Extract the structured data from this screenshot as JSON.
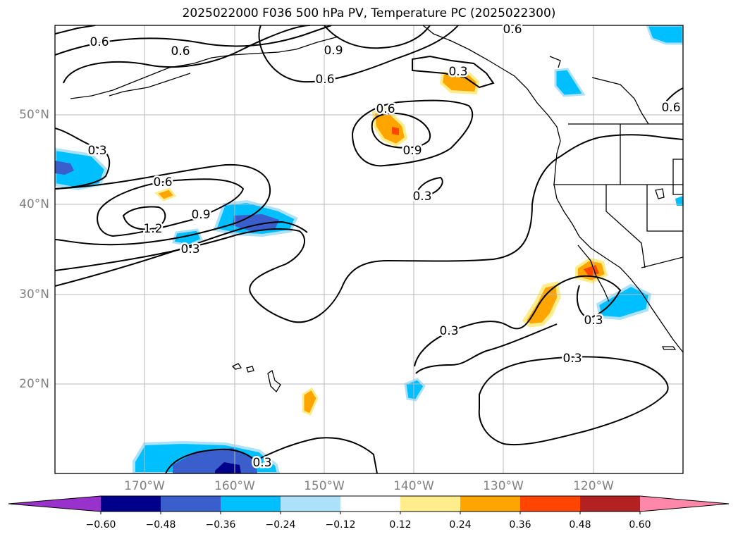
{
  "title": "2025022000 F036 500 hPa PV, Temperature PC (2025022300)",
  "lat_labels": [
    "50°N",
    "40°N",
    "30°N",
    "20°N"
  ],
  "lon_labels": [
    "170°W",
    "160°W",
    "150°W",
    "140°W",
    "130°W",
    "120°W"
  ],
  "colorbar": {
    "ticks": [
      "−0.60",
      "−0.48",
      "−0.36",
      "−0.24",
      "−0.12",
      "0.12",
      "0.24",
      "0.36",
      "0.48",
      "0.60"
    ],
    "colors": [
      "#9932CC",
      "#00008B",
      "#3A5FCD",
      "#00BFFF",
      "#ADE1FA",
      "#FFFFFF",
      "#FFEC8B",
      "#FFA500",
      "#FF4500",
      "#B22222",
      "#FF88AA"
    ]
  },
  "contour_labels": [
    "0.6",
    "0.6",
    "0.9",
    "0.6",
    "0.6",
    "0.3",
    "0.6",
    "0.9",
    "0.3",
    "0.6",
    "0.9",
    "1.2",
    "0.3",
    "0.3",
    "0.3",
    "0.3",
    "0.3",
    "0.3",
    "0.6"
  ]
}
